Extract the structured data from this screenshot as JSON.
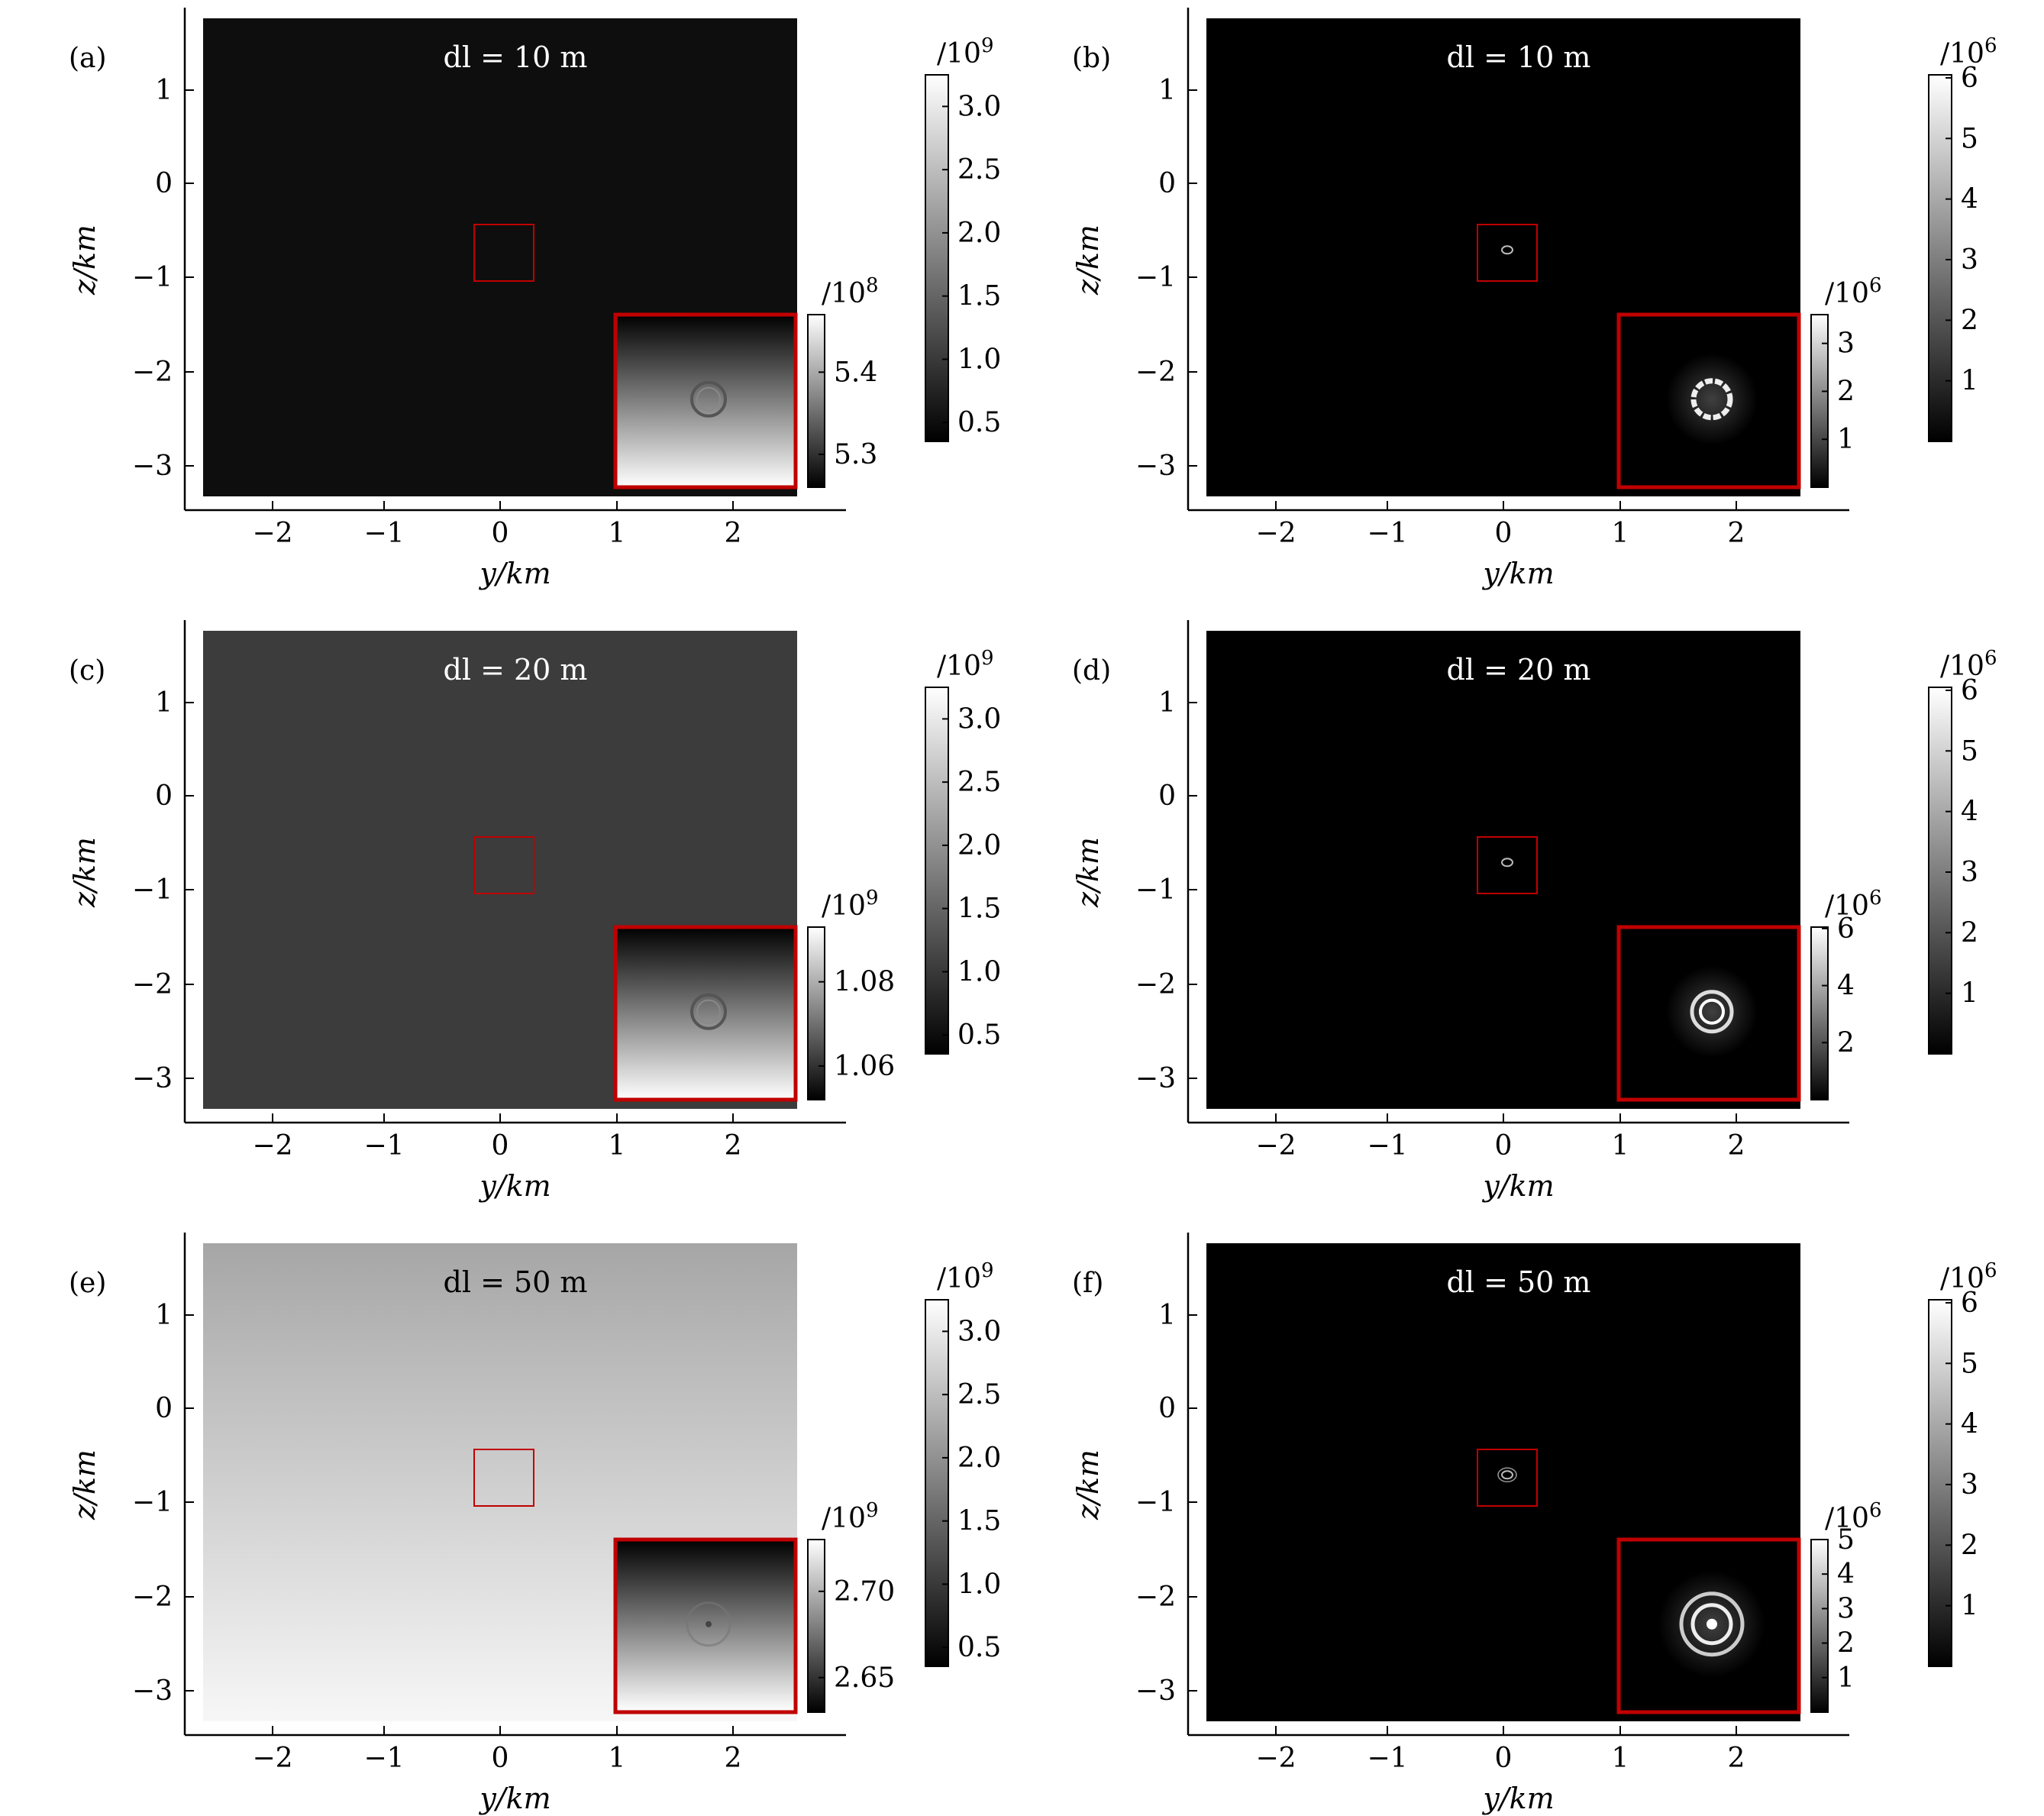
{
  "figure": {
    "y_axis_title": "z/km",
    "x_axis_title": "y/km",
    "x_ticks": [
      "−2",
      "−1",
      "0",
      "1",
      "2"
    ],
    "z_ticks": [
      "1",
      "0",
      "−1",
      "−2",
      "−3"
    ]
  },
  "chart_data": [
    {
      "type": "heatmap",
      "panel": "(a)",
      "annotation": "dl = 10 m",
      "xlabel": "y/km",
      "ylabel": "z/km",
      "xlim": [
        -2.6,
        2.55
      ],
      "ylim": [
        -3.35,
        1.75
      ],
      "background": 0.3,
      "gradient": "none",
      "zoom_box": {
        "y": [
          -0.2,
          0.3
        ],
        "z": [
          -1.05,
          -0.45
        ]
      },
      "colorbar": {
        "exp": "/10",
        "pow": "9",
        "ticks": [
          "0.5",
          "1.0",
          "1.5",
          "2.0",
          "2.5",
          "3.0"
        ],
        "values": [
          0.5,
          1.0,
          1.5,
          2.0,
          2.5,
          3.0
        ],
        "range": [
          0.35,
          3.25
        ]
      },
      "inset": {
        "gradient": "dark-to-light",
        "feature": "ring",
        "colorbar": {
          "exp": "/10",
          "pow": "8",
          "ticks": [
            "5.3",
            "5.4"
          ],
          "values": [
            5.3,
            5.4
          ],
          "range": [
            5.26,
            5.47
          ]
        }
      }
    },
    {
      "type": "heatmap",
      "panel": "(b)",
      "annotation": "dl = 10 m",
      "xlabel": "y/km",
      "ylabel": "z/km",
      "xlim": [
        -2.6,
        2.55
      ],
      "ylim": [
        -3.35,
        1.75
      ],
      "background": 0.0,
      "gradient": "none",
      "zoom_box": {
        "y": [
          -0.2,
          0.3
        ],
        "z": [
          -1.05,
          -0.45
        ]
      },
      "colorbar": {
        "exp": "/10",
        "pow": "6",
        "ticks": [
          "1",
          "2",
          "3",
          "4",
          "5",
          "6"
        ],
        "values": [
          1,
          2,
          3,
          4,
          5,
          6
        ],
        "range": [
          0,
          6.05
        ]
      },
      "inset": {
        "gradient": "none",
        "feature": "bright-ring",
        "colorbar": {
          "exp": "/10",
          "pow": "6",
          "ticks": [
            "1",
            "2",
            "3"
          ],
          "values": [
            1,
            2,
            3
          ],
          "range": [
            0,
            3.6
          ]
        }
      }
    },
    {
      "type": "heatmap",
      "panel": "(c)",
      "annotation": "dl = 20 m",
      "xlabel": "y/km",
      "ylabel": "z/km",
      "xlim": [
        -2.6,
        2.55
      ],
      "ylim": [
        -3.35,
        1.75
      ],
      "background": 0.32,
      "gradient": "none",
      "zoom_box": {
        "y": [
          -0.2,
          0.3
        ],
        "z": [
          -1.05,
          -0.45
        ]
      },
      "colorbar": {
        "exp": "/10",
        "pow": "9",
        "ticks": [
          "0.5",
          "1.0",
          "1.5",
          "2.0",
          "2.5",
          "3.0"
        ],
        "values": [
          0.5,
          1.0,
          1.5,
          2.0,
          2.5,
          3.0
        ],
        "range": [
          0.35,
          3.25
        ]
      },
      "inset": {
        "gradient": "dark-to-light",
        "feature": "ring",
        "colorbar": {
          "exp": "/10",
          "pow": "9",
          "ticks": [
            "1.06",
            "1.08"
          ],
          "values": [
            1.06,
            1.08
          ],
          "range": [
            1.052,
            1.093
          ]
        }
      }
    },
    {
      "type": "heatmap",
      "panel": "(d)",
      "annotation": "dl = 20 m",
      "xlabel": "y/km",
      "ylabel": "z/km",
      "xlim": [
        -2.6,
        2.55
      ],
      "ylim": [
        -3.35,
        1.75
      ],
      "background": 0.0,
      "gradient": "none",
      "zoom_box": {
        "y": [
          -0.2,
          0.3
        ],
        "z": [
          -1.05,
          -0.45
        ]
      },
      "colorbar": {
        "exp": "/10",
        "pow": "6",
        "ticks": [
          "1",
          "2",
          "3",
          "4",
          "5",
          "6"
        ],
        "values": [
          1,
          2,
          3,
          4,
          5,
          6
        ],
        "range": [
          0,
          6.05
        ]
      },
      "inset": {
        "gradient": "none",
        "feature": "bright-double-ring",
        "colorbar": {
          "exp": "/10",
          "pow": "6",
          "ticks": [
            "2",
            "4",
            "6"
          ],
          "values": [
            2,
            4,
            6
          ],
          "range": [
            0,
            6.05
          ]
        }
      }
    },
    {
      "type": "heatmap",
      "panel": "(e)",
      "annotation": "dl = 50 m",
      "xlabel": "y/km",
      "ylabel": "z/km",
      "xlim": [
        -2.6,
        2.55
      ],
      "ylim": [
        -3.35,
        1.75
      ],
      "background": 0.72,
      "gradient": "top-to-bottom-lighter",
      "zoom_box": {
        "y": [
          -0.2,
          0.3
        ],
        "z": [
          -1.05,
          -0.45
        ]
      },
      "colorbar": {
        "exp": "/10",
        "pow": "9",
        "ticks": [
          "0.5",
          "1.0",
          "1.5",
          "2.0",
          "2.5",
          "3.0"
        ],
        "values": [
          0.5,
          1.0,
          1.5,
          2.0,
          2.5,
          3.0
        ],
        "range": [
          0.35,
          3.25
        ]
      },
      "inset": {
        "gradient": "dark-to-light",
        "feature": "faint-ring",
        "colorbar": {
          "exp": "/10",
          "pow": "9",
          "ticks": [
            "2.65",
            "2.70"
          ],
          "values": [
            2.65,
            2.7
          ],
          "range": [
            2.63,
            2.73
          ]
        }
      }
    },
    {
      "type": "heatmap",
      "panel": "(f)",
      "annotation": "dl = 50 m",
      "xlabel": "y/km",
      "ylabel": "z/km",
      "xlim": [
        -2.6,
        2.55
      ],
      "ylim": [
        -3.35,
        1.75
      ],
      "background": 0.0,
      "gradient": "none",
      "zoom_box": {
        "y": [
          -0.2,
          0.3
        ],
        "z": [
          -1.05,
          -0.45
        ]
      },
      "colorbar": {
        "exp": "/10",
        "pow": "6",
        "ticks": [
          "1",
          "2",
          "3",
          "4",
          "5",
          "6"
        ],
        "values": [
          1,
          2,
          3,
          4,
          5,
          6
        ],
        "range": [
          0,
          6.05
        ]
      },
      "inset": {
        "gradient": "none",
        "feature": "concentric-rings",
        "colorbar": {
          "exp": "/10",
          "pow": "6",
          "ticks": [
            "1",
            "2",
            "3",
            "4",
            "5"
          ],
          "values": [
            1,
            2,
            3,
            4,
            5
          ],
          "range": [
            0,
            5.0
          ]
        }
      }
    }
  ]
}
